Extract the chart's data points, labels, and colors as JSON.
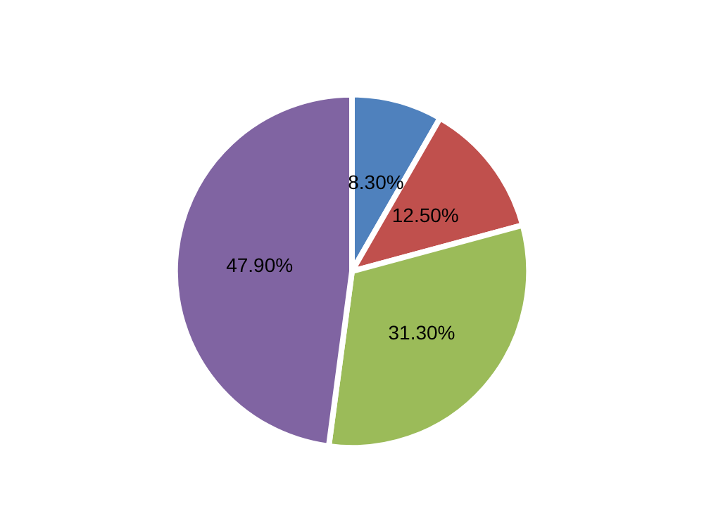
{
  "chart_data": {
    "type": "pie",
    "categories": [
      null,
      null,
      null,
      null
    ],
    "values": [
      8.3,
      12.5,
      31.3,
      47.9
    ],
    "value_labels": [
      "8.30%",
      "12.50%",
      "31.30%",
      "47.90%"
    ],
    "colors": [
      "#4f81bd",
      "#c0504d",
      "#9bbb59",
      "#8064a2"
    ]
  }
}
